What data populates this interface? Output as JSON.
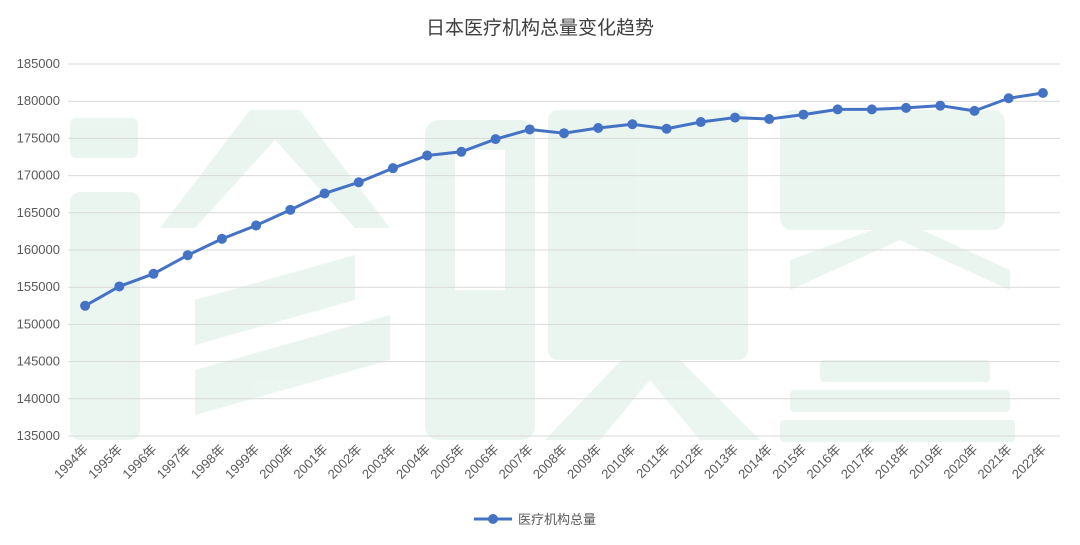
{
  "chart_data": {
    "type": "line",
    "title": "日本医疗机构总量变化趋势",
    "xlabel": "",
    "ylabel": "",
    "categories": [
      "1994年",
      "1995年",
      "1996年",
      "1997年",
      "1998年",
      "1999年",
      "2000年",
      "2001年",
      "2002年",
      "2003年",
      "2004年",
      "2005年",
      "2006年",
      "2007年",
      "2008年",
      "2009年",
      "2010年",
      "2011年",
      "2012年",
      "2013年",
      "2014年",
      "2015年",
      "2016年",
      "2017年",
      "2018年",
      "2019年",
      "2020年",
      "2021年",
      "2022年"
    ],
    "series": [
      {
        "name": "医疗机构总量",
        "color": "#4472c4",
        "values": [
          152500,
          155100,
          156800,
          159300,
          161500,
          163300,
          165400,
          167600,
          169100,
          171000,
          172700,
          173200,
          174900,
          176200,
          175700,
          176400,
          176900,
          176300,
          177200,
          177800,
          177600,
          178200,
          178900,
          178900,
          179100,
          179400,
          178700,
          180400,
          181100
        ]
      }
    ],
    "ylim": [
      135000,
      185000
    ],
    "ytick_step": 5000,
    "ytick_labels": [
      "135000",
      "140000",
      "145000",
      "150000",
      "155000",
      "160000",
      "165000",
      "170000",
      "175000",
      "180000",
      "185000"
    ],
    "grid": true,
    "legend_position": "bottom"
  }
}
